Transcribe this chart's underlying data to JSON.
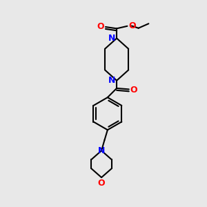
{
  "bg_color": "#e8e8e8",
  "bond_color": "#000000",
  "N_color": "#0000ff",
  "O_color": "#ff0000",
  "lw": 1.5,
  "figsize": [
    3.0,
    3.0
  ],
  "dpi": 100,
  "xlim": [
    0,
    10
  ],
  "ylim": [
    0,
    10
  ]
}
